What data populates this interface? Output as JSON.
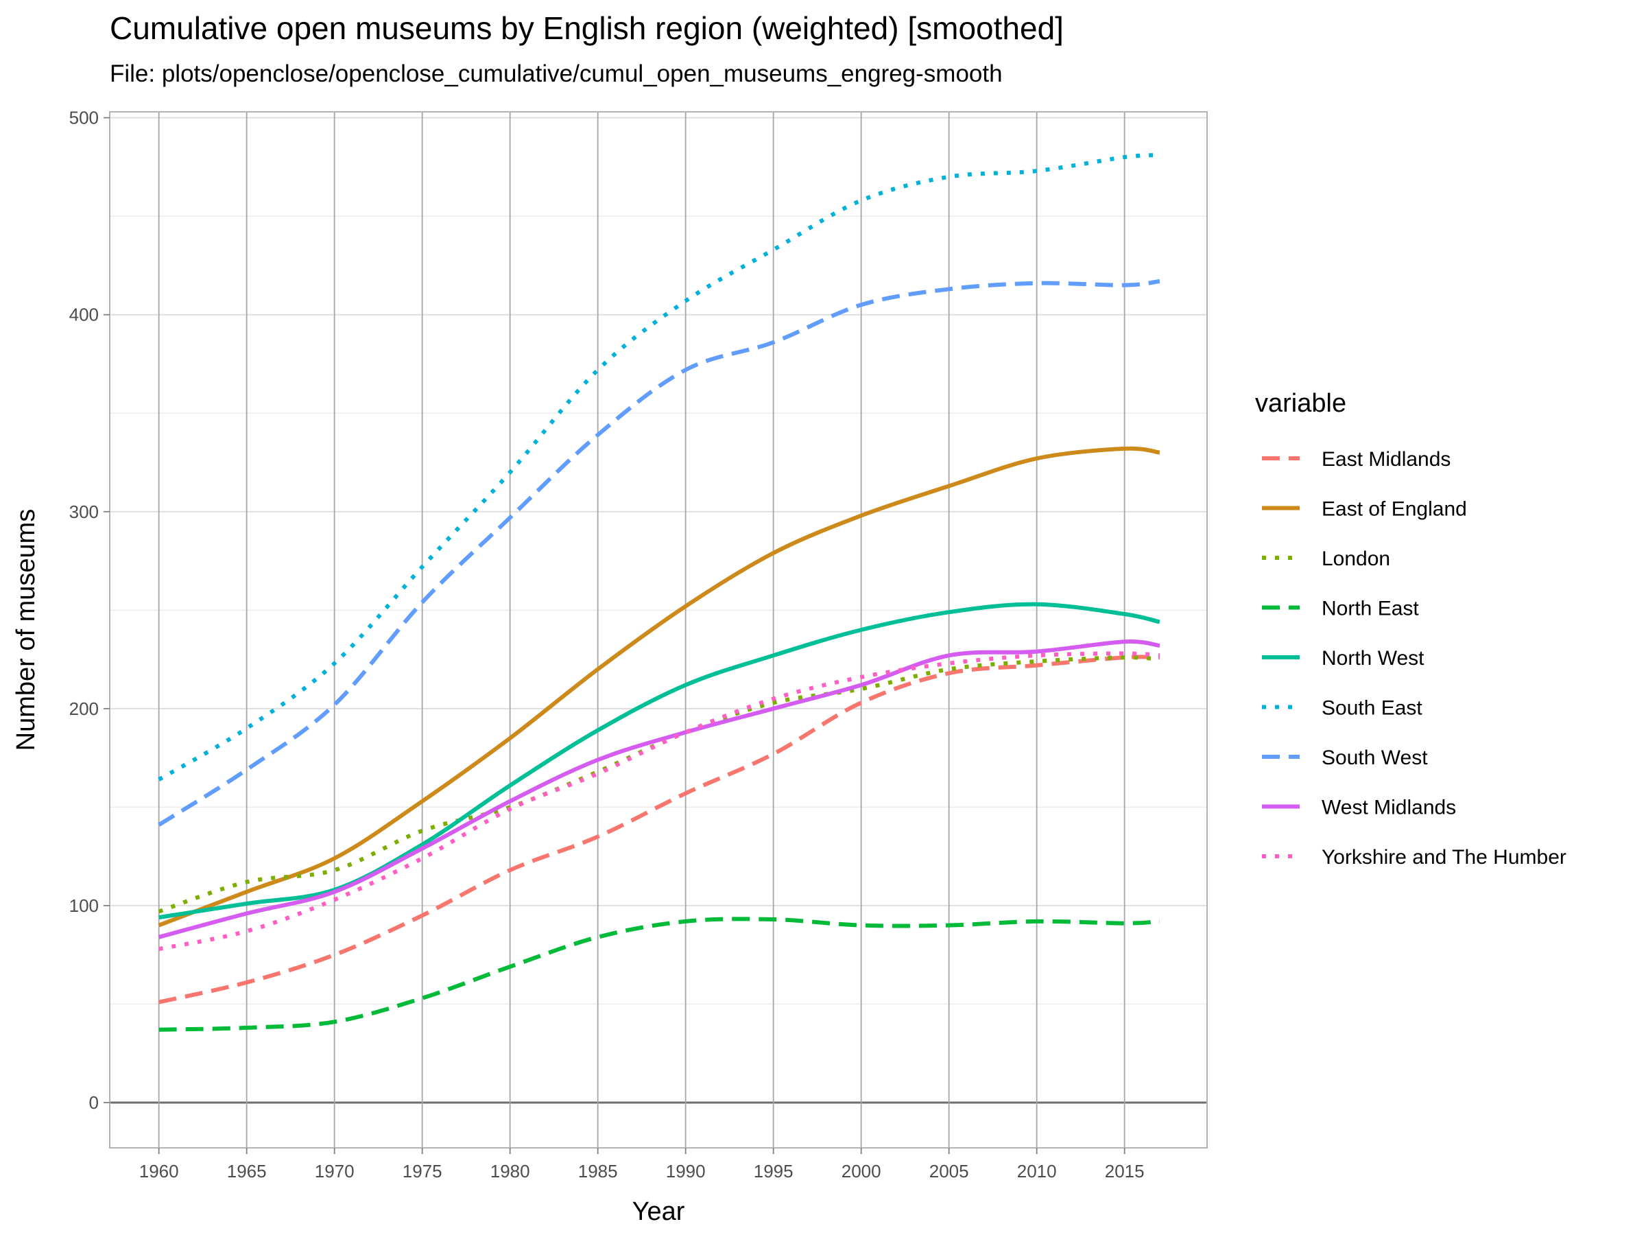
{
  "title": "Cumulative open museums by English region (weighted) [smoothed]",
  "subtitle": "File: plots/openclose/openclose_cumulative/cumul_open_museums_engreg-smooth",
  "chart_data": {
    "type": "line",
    "xlabel": "Year",
    "ylabel": "Number of museums",
    "xlim": [
      1957.2,
      2019.7
    ],
    "ylim": [
      -23,
      503
    ],
    "x_ticks": [
      1960,
      1965,
      1970,
      1975,
      1980,
      1985,
      1990,
      1995,
      2000,
      2005,
      2010,
      2015
    ],
    "y_ticks": [
      0,
      100,
      200,
      300,
      400,
      500
    ],
    "grid": true,
    "legend_position": "right",
    "legend_title": "variable",
    "x": [
      1960,
      1965,
      1970,
      1975,
      1980,
      1985,
      1990,
      1995,
      2000,
      2005,
      2010,
      2015,
      2017
    ],
    "series": [
      {
        "name": "East Midlands",
        "color": "#F8766D",
        "dash": "long",
        "values": [
          51,
          61,
          75,
          95,
          118,
          135,
          157,
          177,
          203,
          218,
          222,
          226,
          226
        ]
      },
      {
        "name": "East of England",
        "color": "#CD8A1A",
        "dash": "solid",
        "values": [
          90,
          107,
          124,
          153,
          185,
          220,
          252,
          279,
          298,
          313,
          327,
          332,
          330
        ]
      },
      {
        "name": "London",
        "color": "#7CAE00",
        "dash": "dot",
        "values": [
          97,
          112,
          118,
          138,
          150,
          168,
          188,
          203,
          210,
          220,
          224,
          226,
          225
        ]
      },
      {
        "name": "North East",
        "color": "#00BA38",
        "dash": "long",
        "values": [
          37,
          38,
          41,
          53,
          69,
          84,
          92,
          93,
          90,
          90,
          92,
          91,
          92
        ]
      },
      {
        "name": "North West",
        "color": "#00BF96",
        "dash": "solid",
        "values": [
          94,
          101,
          108,
          131,
          161,
          189,
          212,
          227,
          240,
          249,
          253,
          248,
          244
        ]
      },
      {
        "name": "South East",
        "color": "#00B2D9",
        "dash": "dot",
        "values": [
          164,
          190,
          223,
          272,
          320,
          372,
          407,
          433,
          458,
          470,
          473,
          480,
          481
        ]
      },
      {
        "name": "South West",
        "color": "#619CFF",
        "dash": "long",
        "values": [
          141,
          169,
          202,
          254,
          297,
          339,
          372,
          386,
          405,
          413,
          416,
          415,
          417
        ]
      },
      {
        "name": "West Midlands",
        "color": "#D55CF0",
        "dash": "solid",
        "values": [
          84,
          96,
          107,
          129,
          153,
          174,
          188,
          200,
          212,
          227,
          229,
          234,
          232
        ]
      },
      {
        "name": "Yorkshire and The Humber",
        "color": "#FF5EC4",
        "dash": "dot",
        "values": [
          78,
          87,
          103,
          124,
          149,
          167,
          188,
          205,
          216,
          223,
          227,
          228,
          227
        ]
      }
    ]
  }
}
